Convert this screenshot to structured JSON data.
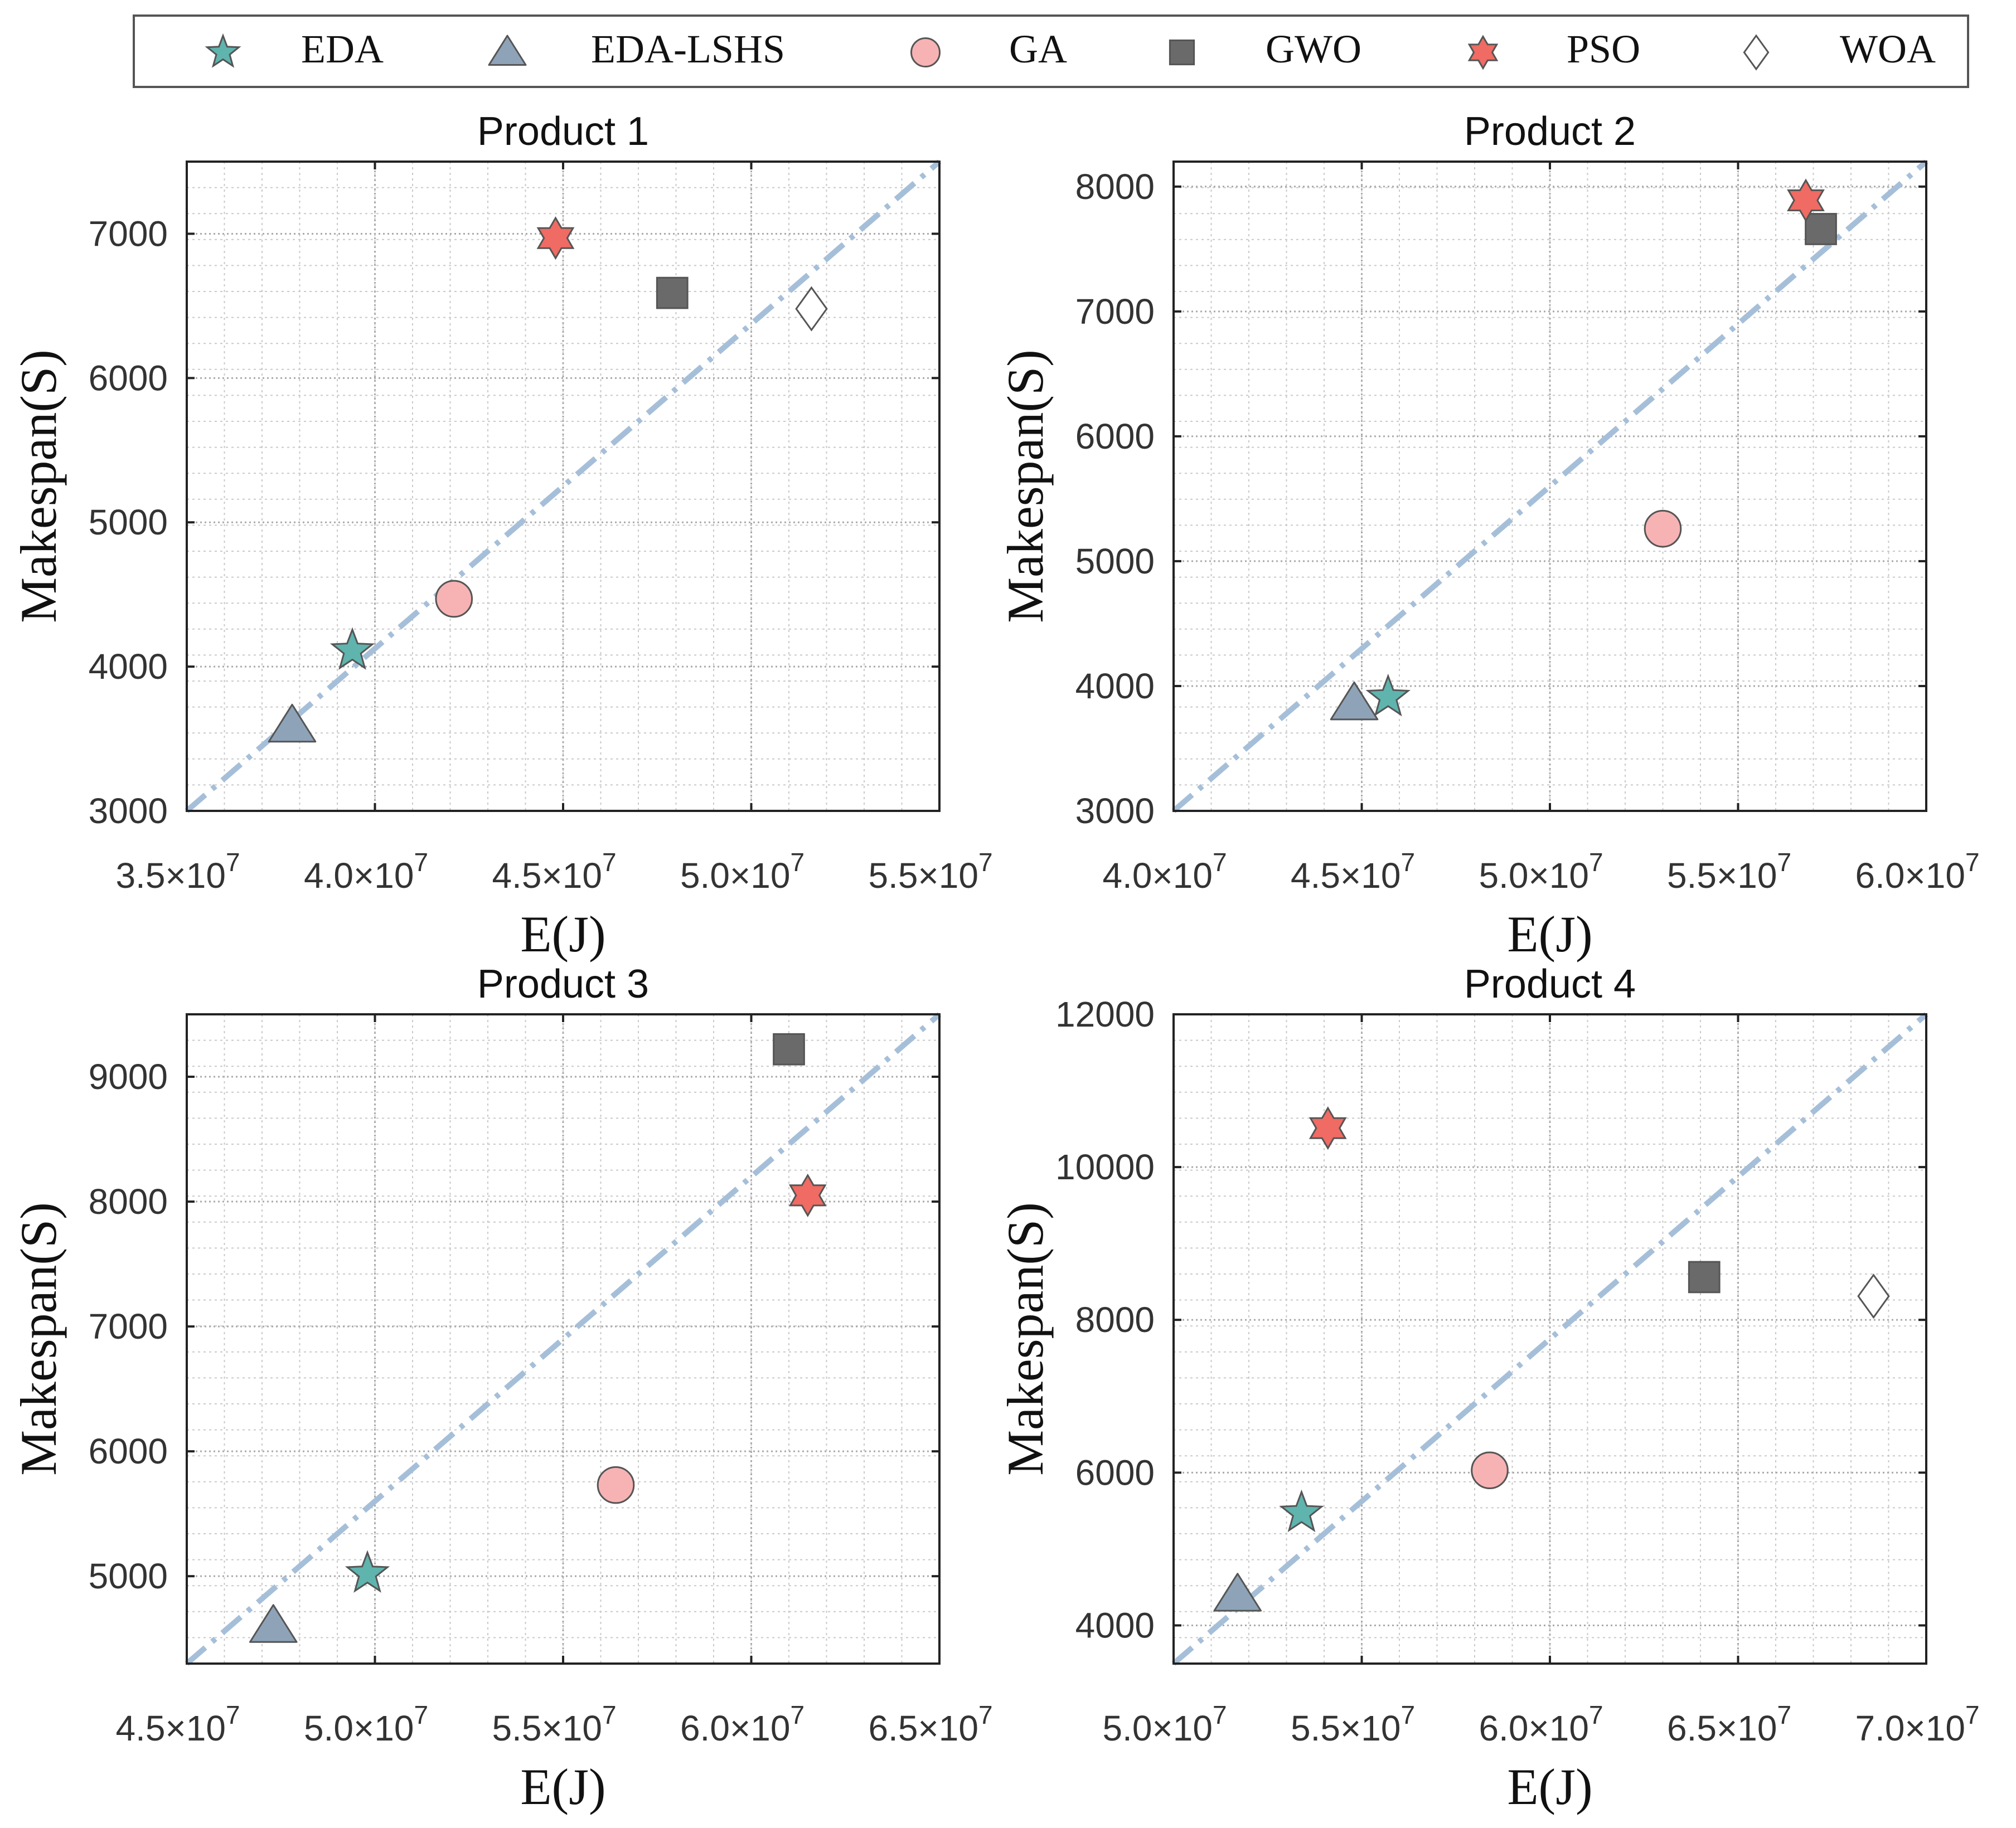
{
  "legend": {
    "items": [
      {
        "label": "EDA",
        "marker": "star",
        "color": "#5fb4ae"
      },
      {
        "label": "EDA-LSHS",
        "marker": "triangle",
        "color": "#8ea3b8"
      },
      {
        "label": "GA",
        "marker": "circle",
        "color": "#f7b3b4"
      },
      {
        "label": "GWO",
        "marker": "square",
        "color": "#6a6a6a"
      },
      {
        "label": "PSO",
        "marker": "hexagram",
        "color": "#ef6b63"
      },
      {
        "label": "WOA",
        "marker": "diamond",
        "color": "#ffffff"
      }
    ]
  },
  "chart_data": [
    {
      "type": "scatter",
      "title": "Product 1",
      "xlabel": "E(J)",
      "ylabel": "Makespan(S)",
      "xlim": [
        35000000,
        55000000
      ],
      "ylim": [
        3000,
        7500
      ],
      "xticks": [
        35000000,
        40000000,
        45000000,
        50000000,
        55000000
      ],
      "xtick_labels": [
        "3.5",
        "4.0",
        "4.5",
        "5.0",
        "5.5"
      ],
      "yticks": [
        3000,
        4000,
        5000,
        6000,
        7000
      ],
      "ytick_labels": [
        "3000",
        "4000",
        "5000",
        "6000",
        "7000"
      ],
      "grid": true,
      "reference_line": {
        "from": [
          35000000,
          3000
        ],
        "to": [
          55000000,
          7500
        ],
        "color": "#a6bfd9"
      },
      "points": [
        {
          "series": "EDA",
          "x": 39400000,
          "y": 4110
        },
        {
          "series": "EDA-LSHS",
          "x": 37800000,
          "y": 3590
        },
        {
          "series": "GA",
          "x": 42100000,
          "y": 4470
        },
        {
          "series": "GWO",
          "x": 47900000,
          "y": 6590
        },
        {
          "series": "PSO",
          "x": 44800000,
          "y": 6970
        },
        {
          "series": "WOA",
          "x": 51600000,
          "y": 6480
        }
      ]
    },
    {
      "type": "scatter",
      "title": "Product 2",
      "xlabel": "E(J)",
      "ylabel": "Makespan(S)",
      "xlim": [
        40000000,
        60000000
      ],
      "ylim": [
        3000,
        8200
      ],
      "xticks": [
        40000000,
        45000000,
        50000000,
        55000000,
        60000000
      ],
      "xtick_labels": [
        "4.0",
        "4.5",
        "5.0",
        "5.5",
        "6.0"
      ],
      "yticks": [
        3000,
        4000,
        5000,
        6000,
        7000,
        8000
      ],
      "ytick_labels": [
        "3000",
        "4000",
        "5000",
        "6000",
        "7000",
        "8000"
      ],
      "grid": true,
      "reference_line": {
        "from": [
          40000000,
          3000
        ],
        "to": [
          60000000,
          8200
        ],
        "color": "#a6bfd9"
      },
      "points": [
        {
          "series": "EDA",
          "x": 45700000,
          "y": 3910
        },
        {
          "series": "EDA-LSHS",
          "x": 44800000,
          "y": 3860
        },
        {
          "series": "GA",
          "x": 53000000,
          "y": 5260
        },
        {
          "series": "GWO",
          "x": 57200000,
          "y": 7660
        },
        {
          "series": "PSO",
          "x": 56800000,
          "y": 7890
        }
      ]
    },
    {
      "type": "scatter",
      "title": "Product 3",
      "xlabel": "E(J)",
      "ylabel": "Makespan(S)",
      "xlim": [
        45000000,
        65000000
      ],
      "ylim": [
        4300,
        9500
      ],
      "xticks": [
        45000000,
        50000000,
        55000000,
        60000000,
        65000000
      ],
      "xtick_labels": [
        "4.5",
        "5.0",
        "5.5",
        "6.0",
        "6.5"
      ],
      "yticks": [
        5000,
        6000,
        7000,
        8000,
        9000
      ],
      "ytick_labels": [
        "5000",
        "6000",
        "7000",
        "8000",
        "9000"
      ],
      "grid": true,
      "reference_line": {
        "from": [
          45000000,
          4300
        ],
        "to": [
          65000000,
          9500
        ],
        "color": "#a6bfd9"
      },
      "points": [
        {
          "series": "EDA",
          "x": 49800000,
          "y": 5020
        },
        {
          "series": "EDA-LSHS",
          "x": 47300000,
          "y": 4600
        },
        {
          "series": "GA",
          "x": 56400000,
          "y": 5730
        },
        {
          "series": "GWO",
          "x": 61000000,
          "y": 9220
        },
        {
          "series": "PSO",
          "x": 61500000,
          "y": 8050
        }
      ]
    },
    {
      "type": "scatter",
      "title": "Product 4",
      "xlabel": "E(J)",
      "ylabel": "Makespan(S)",
      "xlim": [
        50000000,
        70000000
      ],
      "ylim": [
        3500,
        12000
      ],
      "xticks": [
        50000000,
        55000000,
        60000000,
        65000000,
        70000000
      ],
      "xtick_labels": [
        "5.0",
        "5.5",
        "6.0",
        "6.5",
        "7.0"
      ],
      "yticks": [
        4000,
        6000,
        8000,
        10000,
        12000
      ],
      "ytick_labels": [
        "4000",
        "6000",
        "8000",
        "10000",
        "12000"
      ],
      "grid": true,
      "reference_line": {
        "from": [
          50000000,
          3500
        ],
        "to": [
          70000000,
          12000
        ],
        "color": "#a6bfd9"
      },
      "points": [
        {
          "series": "EDA",
          "x": 53400000,
          "y": 5470
        },
        {
          "series": "EDA-LSHS",
          "x": 51700000,
          "y": 4400
        },
        {
          "series": "GA",
          "x": 58400000,
          "y": 6030
        },
        {
          "series": "GWO",
          "x": 64100000,
          "y": 8560
        },
        {
          "series": "PSO",
          "x": 54100000,
          "y": 10510
        },
        {
          "series": "WOA",
          "x": 68600000,
          "y": 8310
        }
      ]
    }
  ],
  "axis_format": {
    "multiplier": "×10",
    "exponent": "7"
  }
}
